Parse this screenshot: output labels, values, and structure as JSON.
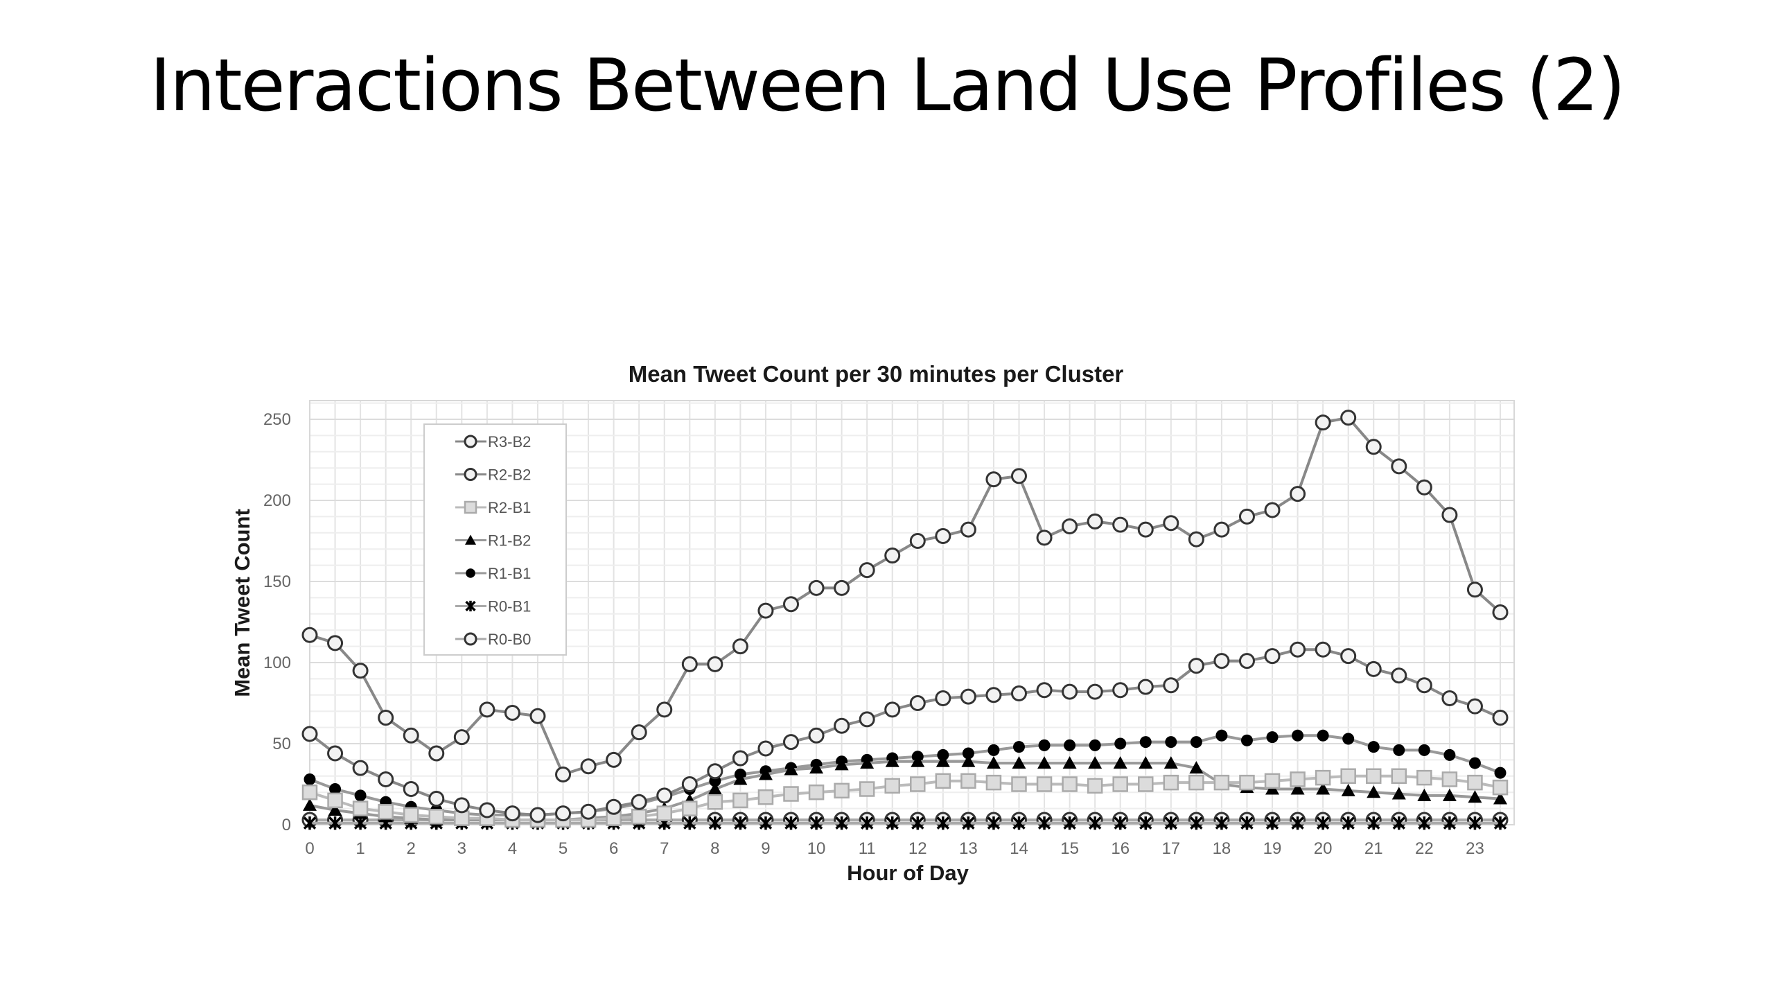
{
  "slide": {
    "title": "Interactions Between Land Use Profiles (2)"
  },
  "chart_data": {
    "type": "line",
    "title": "Mean Tweet Count per 30 minutes per Cluster",
    "xlabel": "Hour of Day",
    "ylabel": "Mean Tweet Count",
    "x": [
      0,
      0.5,
      1,
      1.5,
      2,
      2.5,
      3,
      3.5,
      4,
      4.5,
      5,
      5.5,
      6,
      6.5,
      7,
      7.5,
      8,
      8.5,
      9,
      9.5,
      10,
      10.5,
      11,
      11.5,
      12,
      12.5,
      13,
      13.5,
      14,
      14.5,
      15,
      15.5,
      16,
      16.5,
      17,
      17.5,
      18,
      18.5,
      19,
      19.5,
      20,
      20.5,
      21,
      21.5,
      22,
      22.5,
      23,
      23.5
    ],
    "xticks": [
      0,
      1,
      2,
      3,
      4,
      5,
      6,
      7,
      8,
      9,
      10,
      11,
      12,
      13,
      14,
      15,
      16,
      17,
      18,
      19,
      20,
      21,
      22,
      23
    ],
    "xlim": [
      0,
      23.5
    ],
    "yticks": [
      0,
      50,
      100,
      150,
      200,
      250
    ],
    "ylim": [
      0,
      250
    ],
    "grid": true,
    "legend_position": "top-left",
    "series": [
      {
        "name": "R3-B2",
        "marker": "open-circle",
        "color": "#888888",
        "values": [
          117,
          112,
          95,
          66,
          55,
          44,
          54,
          71,
          69,
          67,
          31,
          36,
          40,
          57,
          71,
          99,
          99,
          110,
          132,
          136,
          146,
          146,
          157,
          166,
          175,
          178,
          182,
          213,
          215,
          177,
          184,
          187,
          185,
          182,
          186,
          176,
          182,
          190,
          194,
          204,
          248,
          251,
          233,
          221,
          208,
          191,
          145,
          131
        ]
      },
      {
        "name": "R2-B2",
        "marker": "open-circle",
        "color": "#888888",
        "values": [
          56,
          44,
          35,
          28,
          22,
          16,
          12,
          9,
          7,
          6,
          7,
          8,
          11,
          14,
          18,
          25,
          33,
          41,
          47,
          51,
          55,
          61,
          65,
          71,
          75,
          78,
          79,
          80,
          81,
          83,
          82,
          82,
          83,
          85,
          86,
          98,
          101,
          101,
          104,
          108,
          108,
          104,
          96,
          92,
          86,
          78,
          73,
          66
        ]
      },
      {
        "name": "R2-B1",
        "marker": "open-square",
        "color": "#bbbbbb",
        "values": [
          20,
          15,
          10,
          8,
          6,
          5,
          4,
          4,
          3,
          3,
          3,
          3,
          4,
          5,
          7,
          10,
          14,
          15,
          17,
          19,
          20,
          21,
          22,
          24,
          25,
          27,
          27,
          26,
          25,
          25,
          25,
          24,
          25,
          25,
          26,
          26,
          26,
          26,
          27,
          28,
          29,
          30,
          30,
          30,
          29,
          28,
          26,
          23
        ]
      },
      {
        "name": "R1-B2",
        "marker": "filled-triangle",
        "color": "#999999",
        "values": [
          12,
          9,
          7,
          5,
          4,
          3,
          3,
          3,
          3,
          3,
          3,
          4,
          5,
          7,
          10,
          15,
          22,
          28,
          31,
          34,
          35,
          37,
          38,
          39,
          39,
          39,
          39,
          38,
          38,
          38,
          38,
          38,
          38,
          38,
          38,
          35,
          25,
          23,
          22,
          22,
          22,
          21,
          20,
          19,
          18,
          18,
          17,
          16
        ]
      },
      {
        "name": "R1-B1",
        "marker": "filled-circle",
        "color": "#999999",
        "values": [
          28,
          22,
          18,
          14,
          11,
          9,
          7,
          6,
          6,
          6,
          7,
          8,
          10,
          13,
          17,
          22,
          27,
          31,
          33,
          35,
          37,
          39,
          40,
          41,
          42,
          43,
          44,
          46,
          48,
          49,
          49,
          49,
          50,
          51,
          51,
          51,
          55,
          52,
          54,
          55,
          55,
          53,
          48,
          46,
          46,
          43,
          38,
          32
        ]
      },
      {
        "name": "R0-B1",
        "marker": "x-star",
        "color": "#aaaaaa",
        "values": [
          1,
          1,
          1,
          1,
          1,
          1,
          1,
          1,
          1,
          1,
          1,
          1,
          1,
          1,
          1,
          1,
          1,
          1,
          1,
          1,
          1,
          1,
          1,
          1,
          1,
          1,
          1,
          1,
          1,
          1,
          1,
          1,
          1,
          1,
          1,
          1,
          1,
          1,
          1,
          1,
          1,
          1,
          1,
          1,
          1,
          1,
          1,
          1
        ]
      },
      {
        "name": "R0-B0",
        "marker": "open-circle",
        "color": "#aaaaaa",
        "values": [
          3,
          3,
          3,
          3,
          3,
          3,
          3,
          3,
          3,
          3,
          3,
          3,
          3,
          3,
          3,
          3,
          3,
          3,
          3,
          3,
          3,
          3,
          3,
          3,
          3,
          3,
          3,
          3,
          3,
          3,
          3,
          3,
          3,
          3,
          3,
          3,
          3,
          3,
          3,
          3,
          3,
          3,
          3,
          3,
          3,
          3,
          3,
          3
        ]
      }
    ]
  }
}
